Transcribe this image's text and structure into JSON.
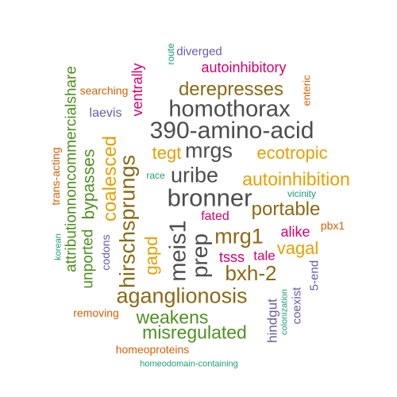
{
  "colors": {
    "charcoal": "#4d4d4d",
    "brown": "#8b6914",
    "green": "#4e8f1e",
    "orange": "#d95f02",
    "amber": "#e6a000",
    "magenta": "#d6006f",
    "purple": "#6a5aa8",
    "teal": "#1b9e77"
  },
  "words": [
    {
      "text": "390-amino-acid",
      "color": "charcoal"
    },
    {
      "text": "homothorax",
      "color": "charcoal"
    },
    {
      "text": "bronner",
      "color": "charcoal"
    },
    {
      "text": "uribe",
      "color": "charcoal"
    },
    {
      "text": "mrgs",
      "color": "charcoal"
    },
    {
      "text": "derepresses",
      "color": "brown"
    },
    {
      "text": "autoinhibitory",
      "color": "magenta"
    },
    {
      "text": "diverged",
      "color": "purple"
    },
    {
      "text": "route",
      "color": "teal"
    },
    {
      "text": "ventrally",
      "color": "magenta"
    },
    {
      "text": "searching",
      "color": "orange"
    },
    {
      "text": "laevis",
      "color": "purple"
    },
    {
      "text": "enteric",
      "color": "orange"
    },
    {
      "text": "tegt",
      "color": "amber"
    },
    {
      "text": "ecotropic",
      "color": "amber"
    },
    {
      "text": "autoinhibition",
      "color": "amber"
    },
    {
      "text": "race",
      "color": "teal"
    },
    {
      "text": "vicinity",
      "color": "teal"
    },
    {
      "text": "portable",
      "color": "brown"
    },
    {
      "text": "fated",
      "color": "magenta"
    },
    {
      "text": "mrg1",
      "color": "brown"
    },
    {
      "text": "alike",
      "color": "magenta"
    },
    {
      "text": "pbx1",
      "color": "orange"
    },
    {
      "text": "vagal",
      "color": "amber"
    },
    {
      "text": "tsss",
      "color": "magenta"
    },
    {
      "text": "tale",
      "color": "magenta"
    },
    {
      "text": "bxh-2",
      "color": "brown"
    },
    {
      "text": "aganglionosis",
      "color": "brown"
    },
    {
      "text": "weakens",
      "color": "green"
    },
    {
      "text": "misregulated",
      "color": "green"
    },
    {
      "text": "removing",
      "color": "orange"
    },
    {
      "text": "homeoproteins",
      "color": "orange"
    },
    {
      "text": "homeodomain-containing",
      "color": "teal"
    },
    {
      "text": "attributionnoncommercialshare",
      "color": "green"
    },
    {
      "text": "trans-acting",
      "color": "orange"
    },
    {
      "text": "korean",
      "color": "teal"
    },
    {
      "text": "unported",
      "color": "green"
    },
    {
      "text": "bypasses",
      "color": "green"
    },
    {
      "text": "coalesced",
      "color": "amber"
    },
    {
      "text": "codons",
      "color": "purple"
    },
    {
      "text": "hirschsprungs",
      "color": "brown"
    },
    {
      "text": "gapd",
      "color": "amber"
    },
    {
      "text": "meis1",
      "color": "charcoal"
    },
    {
      "text": "prep",
      "color": "charcoal"
    },
    {
      "text": "hindgut",
      "color": "purple"
    },
    {
      "text": "colonization",
      "color": "teal"
    },
    {
      "text": "coexist",
      "color": "purple"
    },
    {
      "text": "5-end",
      "color": "purple"
    }
  ]
}
